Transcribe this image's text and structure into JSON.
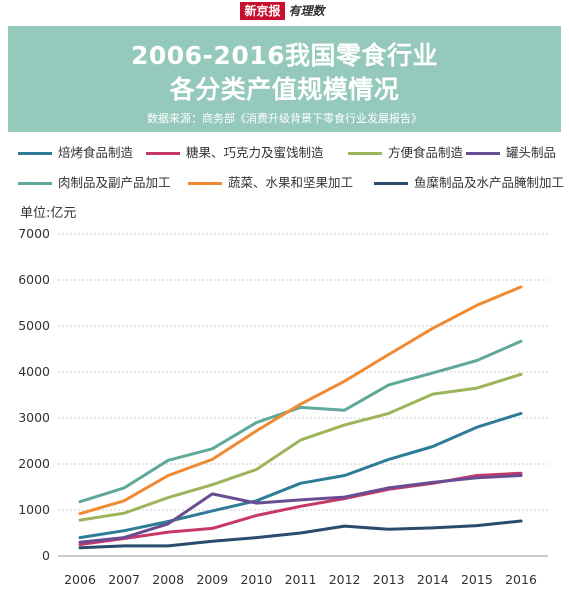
{
  "brand": {
    "name_a": "新京报",
    "name_b": "有理数"
  },
  "header": {
    "title_line1": "2006-2016我国零食行业",
    "title_line2": "各分类产值规模情况",
    "source": "数据来源：商务部《消费升级背景下零食行业发展报告》"
  },
  "chart_data": {
    "type": "line",
    "ylabel": "单位:亿元",
    "ylim": [
      0,
      7000
    ],
    "yticks": [
      0,
      1000,
      2000,
      3000,
      4000,
      5000,
      6000,
      7000
    ],
    "x": [
      "2006",
      "2007",
      "2008",
      "2009",
      "2010",
      "2011",
      "2012",
      "2013",
      "2014",
      "2015",
      "2016"
    ],
    "grid": "horizontal",
    "legend_position": "top",
    "series": [
      {
        "name": "焙烤食品制造",
        "color": "#2e7c97",
        "values": [
          400,
          550,
          750,
          980,
          1200,
          1580,
          1750,
          2100,
          2380,
          2800,
          3100
        ]
      },
      {
        "name": "糖果、巧克力及蜜饯制造",
        "color": "#c7386a",
        "values": [
          250,
          380,
          520,
          600,
          880,
          1080,
          1250,
          1450,
          1580,
          1750,
          1800
        ]
      },
      {
        "name": "方便食品制造",
        "color": "#9db45a",
        "values": [
          780,
          930,
          1270,
          1550,
          1880,
          2520,
          2850,
          3100,
          3520,
          3650,
          3950
        ]
      },
      {
        "name": "罐头制品",
        "color": "#6a4c93",
        "values": [
          300,
          400,
          700,
          1350,
          1150,
          1220,
          1280,
          1480,
          1600,
          1700,
          1750
        ]
      },
      {
        "name": "肉制品及副产品加工",
        "color": "#5fa89a",
        "values": [
          1180,
          1480,
          2080,
          2330,
          2900,
          3230,
          3170,
          3720,
          3980,
          4250,
          4670
        ]
      },
      {
        "name": "蔬菜、水果和坚果加工",
        "color": "#f08a32",
        "values": [
          920,
          1200,
          1750,
          2100,
          2720,
          3300,
          3800,
          4380,
          4950,
          5450,
          5850
        ]
      },
      {
        "name": "鱼糜制品及水产品腌制加工",
        "color": "#2a4a6e",
        "values": [
          180,
          220,
          220,
          320,
          400,
          500,
          650,
          580,
          610,
          660,
          760
        ]
      }
    ]
  }
}
